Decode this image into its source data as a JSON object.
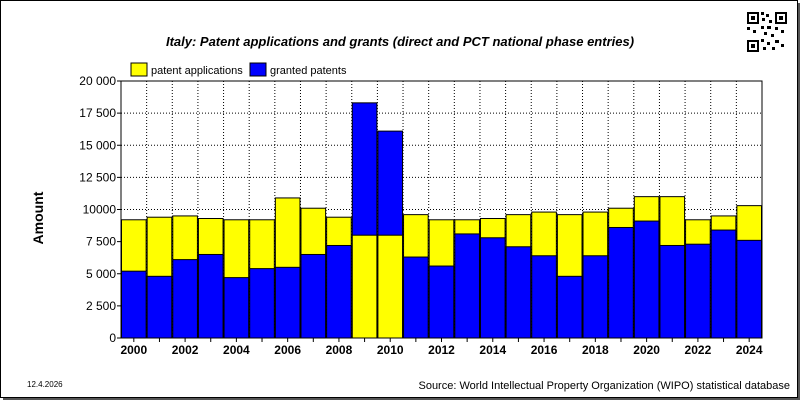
{
  "chart_data": {
    "type": "bar",
    "title": "Italy: Patent applications and grants (direct and PCT national phase entries)",
    "ylabel": "Amount",
    "ylim": [
      0,
      20000
    ],
    "yticks": [
      0,
      2500,
      5000,
      7500,
      10000,
      12500,
      15000,
      17500,
      20000
    ],
    "ytick_labels": [
      "0",
      "2 500",
      "5 000",
      "7 500",
      "10000",
      "12 500",
      "15 000",
      "17 500",
      "20 000"
    ],
    "xtick_labels": [
      "2000",
      "2002",
      "2004",
      "2006",
      "2008",
      "2010",
      "2012",
      "2014",
      "2016",
      "2018",
      "2020",
      "2022",
      "2024"
    ],
    "grid": true,
    "legend_position": "top-left",
    "categories": [
      "2000",
      "2001",
      "2002",
      "2003",
      "2004",
      "2005",
      "2006",
      "2007",
      "2008",
      "2009",
      "2010",
      "2011",
      "2012",
      "2013",
      "2014",
      "2015",
      "2016",
      "2017",
      "2018",
      "2019",
      "2020",
      "2021",
      "2022",
      "2023",
      "2024"
    ],
    "series": [
      {
        "name": "patent applications",
        "color": "#ffff00",
        "values": [
          9200,
          9400,
          9500,
          9300,
          9200,
          9200,
          10900,
          10100,
          9400,
          8000,
          8000,
          9600,
          9200,
          9200,
          9300,
          9600,
          9800,
          9600,
          9800,
          10100,
          11000,
          11000,
          9200,
          9500,
          10300
        ]
      },
      {
        "name": "granted patents",
        "color": "#0000ff",
        "values": [
          5200,
          4800,
          6100,
          6500,
          4700,
          5400,
          5500,
          6500,
          7200,
          18300,
          16100,
          6300,
          5600,
          8100,
          7800,
          7100,
          6400,
          4800,
          6400,
          8600,
          9100,
          7200,
          7300,
          8400,
          7600
        ]
      }
    ]
  },
  "footer": {
    "date": "12.4.2026",
    "source": "Source: World Intellectual Property Organization (WIPO) statistical database"
  }
}
